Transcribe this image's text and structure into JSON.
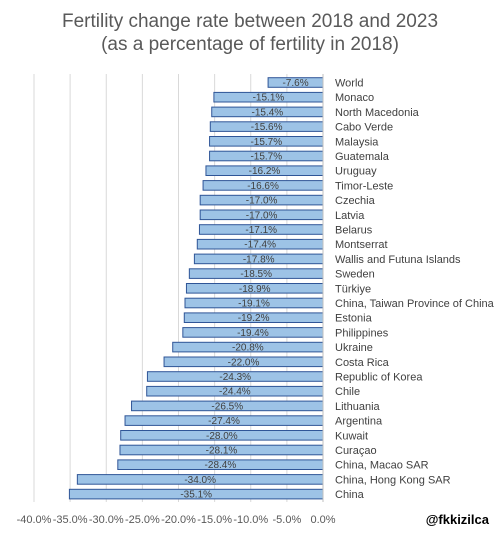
{
  "chart_data": {
    "type": "bar",
    "orientation": "horizontal",
    "title": "Fertility change rate between 2018 and 2023",
    "subtitle": "(as a percentage of fertility in 2018)",
    "xlabel": "",
    "ylabel": "",
    "xlim": [
      -0.4,
      0.0
    ],
    "grid": true,
    "legend": "none",
    "bar_color": "#9dc3e6",
    "bar_edge_color": "#2f5597",
    "categories": [
      "World",
      "Monaco",
      "North Macedonia",
      "Cabo Verde",
      "Malaysia",
      "Guatemala",
      "Uruguay",
      "Timor-Leste",
      "Czechia",
      "Latvia",
      "Belarus",
      "Montserrat",
      "Wallis and Futuna Islands",
      "Sweden",
      "Türkiye",
      "China, Taiwan Province of China",
      "Estonia",
      "Philippines",
      "Ukraine",
      "Costa Rica",
      "Republic of Korea",
      "Chile",
      "Lithuania",
      "Argentina",
      "Kuwait",
      "Curaçao",
      "China, Macao SAR",
      "China, Hong Kong SAR",
      "China"
    ],
    "values": [
      -0.076,
      -0.151,
      -0.154,
      -0.156,
      -0.157,
      -0.157,
      -0.162,
      -0.166,
      -0.17,
      -0.17,
      -0.171,
      -0.174,
      -0.178,
      -0.185,
      -0.189,
      -0.191,
      -0.192,
      -0.194,
      -0.208,
      -0.22,
      -0.243,
      -0.244,
      -0.265,
      -0.274,
      -0.28,
      -0.281,
      -0.284,
      -0.34,
      -0.351
    ],
    "value_labels": [
      "-7.6%",
      "-15.1%",
      "-15.4%",
      "-15.6%",
      "-15.7%",
      "-15.7%",
      "-16.2%",
      "-16.6%",
      "-17.0%",
      "-17.0%",
      "-17.1%",
      "-17.4%",
      "-17.8%",
      "-18.5%",
      "-18.9%",
      "-19.1%",
      "-19.2%",
      "-19.4%",
      "-20.8%",
      "-22.0%",
      "-24.3%",
      "-24.4%",
      "-26.5%",
      "-27.4%",
      "-28.0%",
      "-28.1%",
      "-28.4%",
      "-34.0%",
      "-35.1%"
    ],
    "x_ticks": [
      -0.4,
      -0.35,
      -0.3,
      -0.25,
      -0.2,
      -0.15,
      -0.1,
      -0.05,
      0.0
    ],
    "x_tick_labels": [
      "-40.0%",
      "-35.0%",
      "-30.0%",
      "-25.0%",
      "-20.0%",
      "-15.0%",
      "-10.0%",
      "-5.0%",
      "0.0%"
    ]
  },
  "watermark": "@fkkizilca"
}
